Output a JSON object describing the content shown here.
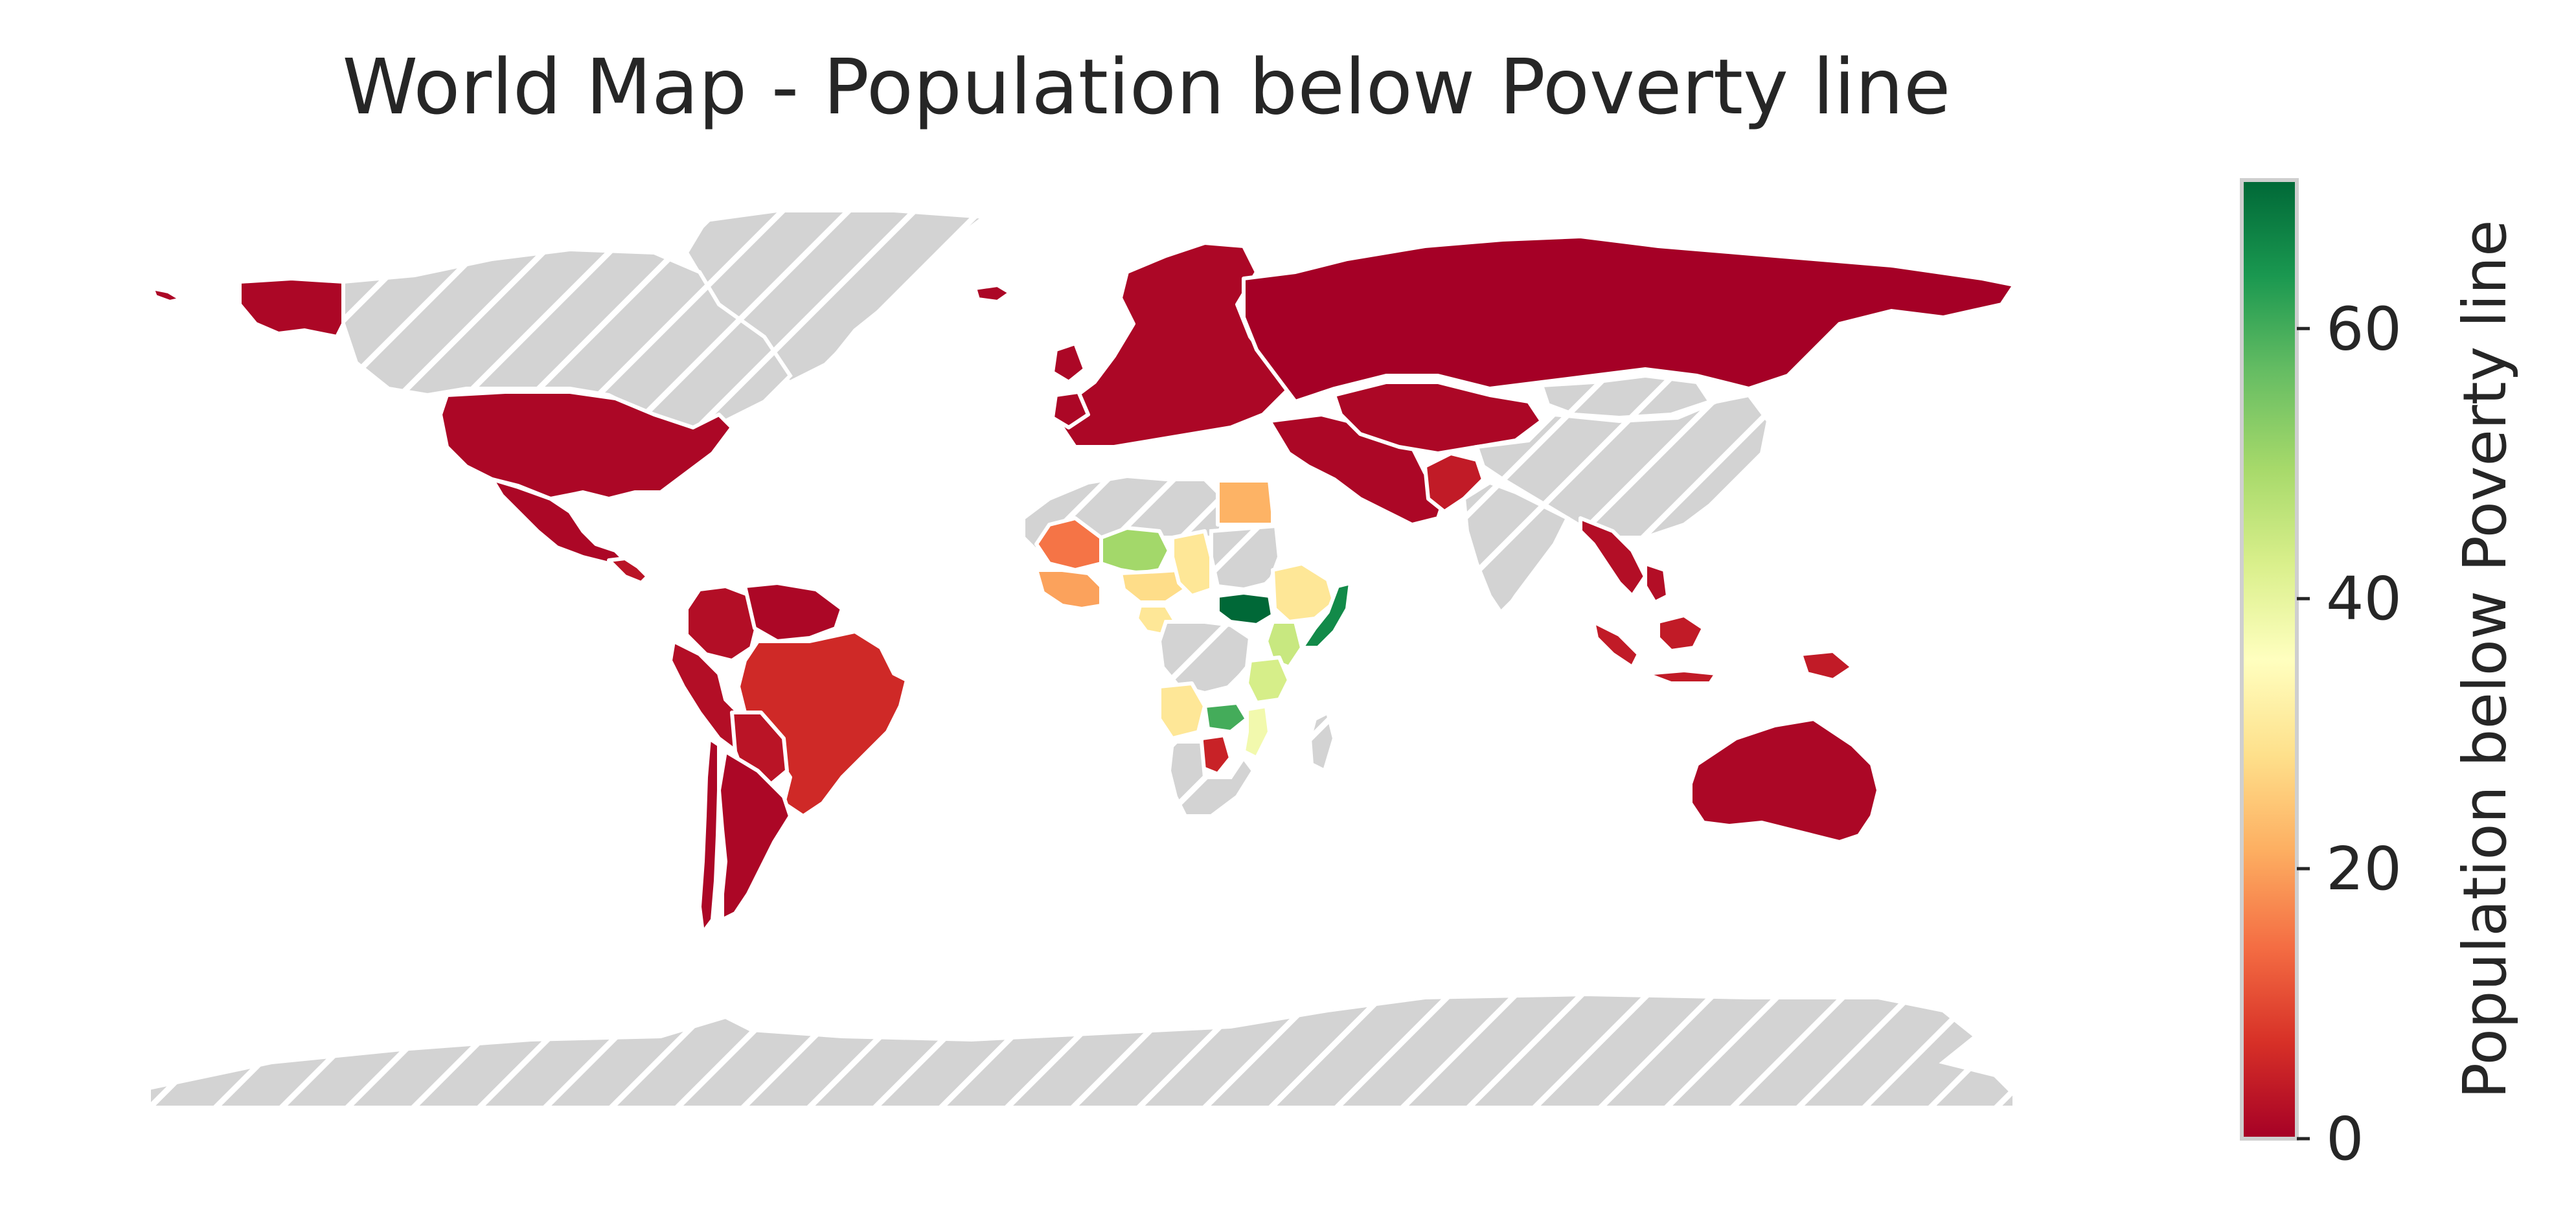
{
  "title": "World Map - Population below Poverty line",
  "colorbar": {
    "label": "Population below Poverty line",
    "min": 0,
    "max": 71,
    "ticks": [
      0,
      20,
      40,
      60
    ],
    "cmap": "RdYlGn",
    "colors": [
      "#a50026",
      "#d73027",
      "#f46d43",
      "#fdae61",
      "#fee08b",
      "#ffffbf",
      "#d9ef8b",
      "#a6d96a",
      "#66bd63",
      "#1a9850",
      "#006837"
    ]
  },
  "missing_color": "#d3d3d3",
  "regions": [
    {
      "name": "Canada",
      "value": null
    },
    {
      "name": "Greenland",
      "value": null
    },
    {
      "name": "Alaska",
      "value": 1
    },
    {
      "name": "United States",
      "value": 1
    },
    {
      "name": "Mexico",
      "value": 1
    },
    {
      "name": "Central America",
      "value": 3
    },
    {
      "name": "Colombia",
      "value": 2
    },
    {
      "name": "Venezuela",
      "value": 1
    },
    {
      "name": "Peru",
      "value": 2
    },
    {
      "name": "Brazil",
      "value": 6
    },
    {
      "name": "Bolivia",
      "value": 3
    },
    {
      "name": "Argentina",
      "value": 1
    },
    {
      "name": "Chile",
      "value": 1
    },
    {
      "name": "Europe",
      "value": 1
    },
    {
      "name": "Iceland",
      "value": 1
    },
    {
      "name": "Russia",
      "value": 0
    },
    {
      "name": "Kazakhstan",
      "value": 1
    },
    {
      "name": "Middle East",
      "value": 1
    },
    {
      "name": "China",
      "value": null
    },
    {
      "name": "Mongolia",
      "value": null
    },
    {
      "name": "India",
      "value": null
    },
    {
      "name": "Pakistan",
      "value": 4
    },
    {
      "name": "Southeast Asia",
      "value": 2
    },
    {
      "name": "Indonesia",
      "value": 4
    },
    {
      "name": "Australia",
      "value": 1
    },
    {
      "name": "North Africa",
      "value": null
    },
    {
      "name": "Egypt",
      "value": 22
    },
    {
      "name": "Mauritania",
      "value": 15
    },
    {
      "name": "Mali",
      "value": 50
    },
    {
      "name": "Niger",
      "value": 28
    },
    {
      "name": "Chad",
      "value": 30
    },
    {
      "name": "Nigeria",
      "value": 30
    },
    {
      "name": "West Africa",
      "value": 20
    },
    {
      "name": "Sudan",
      "value": null
    },
    {
      "name": "South Sudan",
      "value": 71
    },
    {
      "name": "Ethiopia",
      "value": 30
    },
    {
      "name": "Somalia",
      "value": 66
    },
    {
      "name": "Kenya",
      "value": 45
    },
    {
      "name": "Tanzania",
      "value": 43
    },
    {
      "name": "DR Congo",
      "value": null
    },
    {
      "name": "Angola",
      "value": 30
    },
    {
      "name": "Zambia",
      "value": 60
    },
    {
      "name": "Mozambique",
      "value": 38
    },
    {
      "name": "Southern Africa",
      "value": null
    },
    {
      "name": "Botswana",
      "value": 5
    },
    {
      "name": "Madagascar",
      "value": null
    },
    {
      "name": "Antarctica",
      "value": null
    }
  ]
}
